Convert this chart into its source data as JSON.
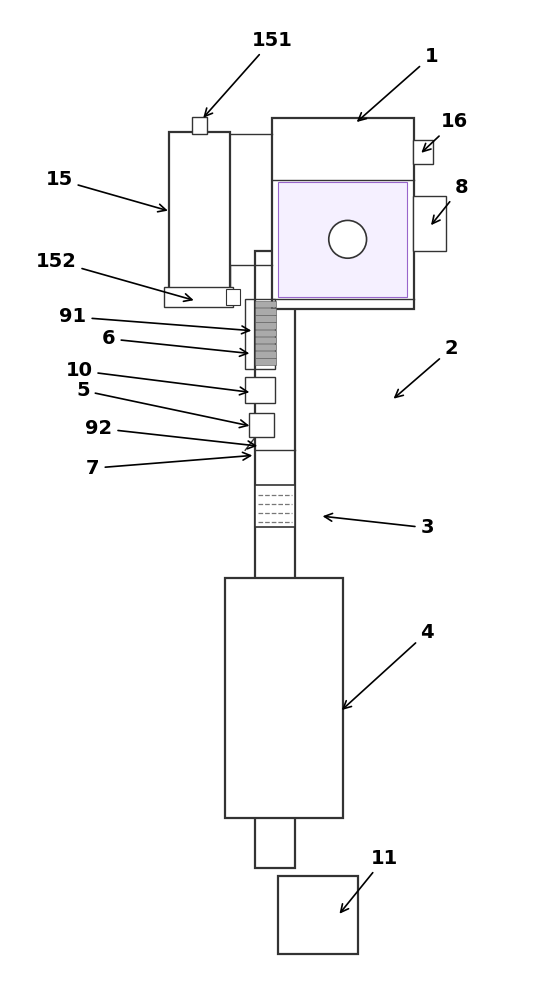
{
  "bg_color": "#ffffff",
  "line_color": "#333333",
  "figsize": [
    5.58,
    10.0
  ],
  "dpi": 100,
  "annotations": [
    [
      "1",
      [
        432,
        946
      ],
      [
        355,
        878
      ]
    ],
    [
      "151",
      [
        272,
        962
      ],
      [
        201,
        882
      ]
    ],
    [
      "15",
      [
        58,
        822
      ],
      [
        170,
        790
      ]
    ],
    [
      "16",
      [
        455,
        880
      ],
      [
        420,
        847
      ]
    ],
    [
      "8",
      [
        462,
        814
      ],
      [
        430,
        774
      ]
    ],
    [
      "152",
      [
        55,
        740
      ],
      [
        196,
        700
      ]
    ],
    [
      "2",
      [
        452,
        652
      ],
      [
        392,
        600
      ]
    ],
    [
      "91",
      [
        72,
        684
      ],
      [
        254,
        670
      ]
    ],
    [
      "6",
      [
        108,
        662
      ],
      [
        252,
        647
      ]
    ],
    [
      "10",
      [
        78,
        630
      ],
      [
        252,
        608
      ]
    ],
    [
      "5",
      [
        82,
        610
      ],
      [
        252,
        574
      ]
    ],
    [
      "92",
      [
        98,
        572
      ],
      [
        260,
        554
      ]
    ],
    [
      "7",
      [
        92,
        532
      ],
      [
        255,
        545
      ]
    ],
    [
      "3",
      [
        428,
        472
      ],
      [
        320,
        484
      ]
    ],
    [
      "4",
      [
        428,
        367
      ],
      [
        340,
        287
      ]
    ],
    [
      "11",
      [
        385,
        140
      ],
      [
        338,
        82
      ]
    ]
  ]
}
